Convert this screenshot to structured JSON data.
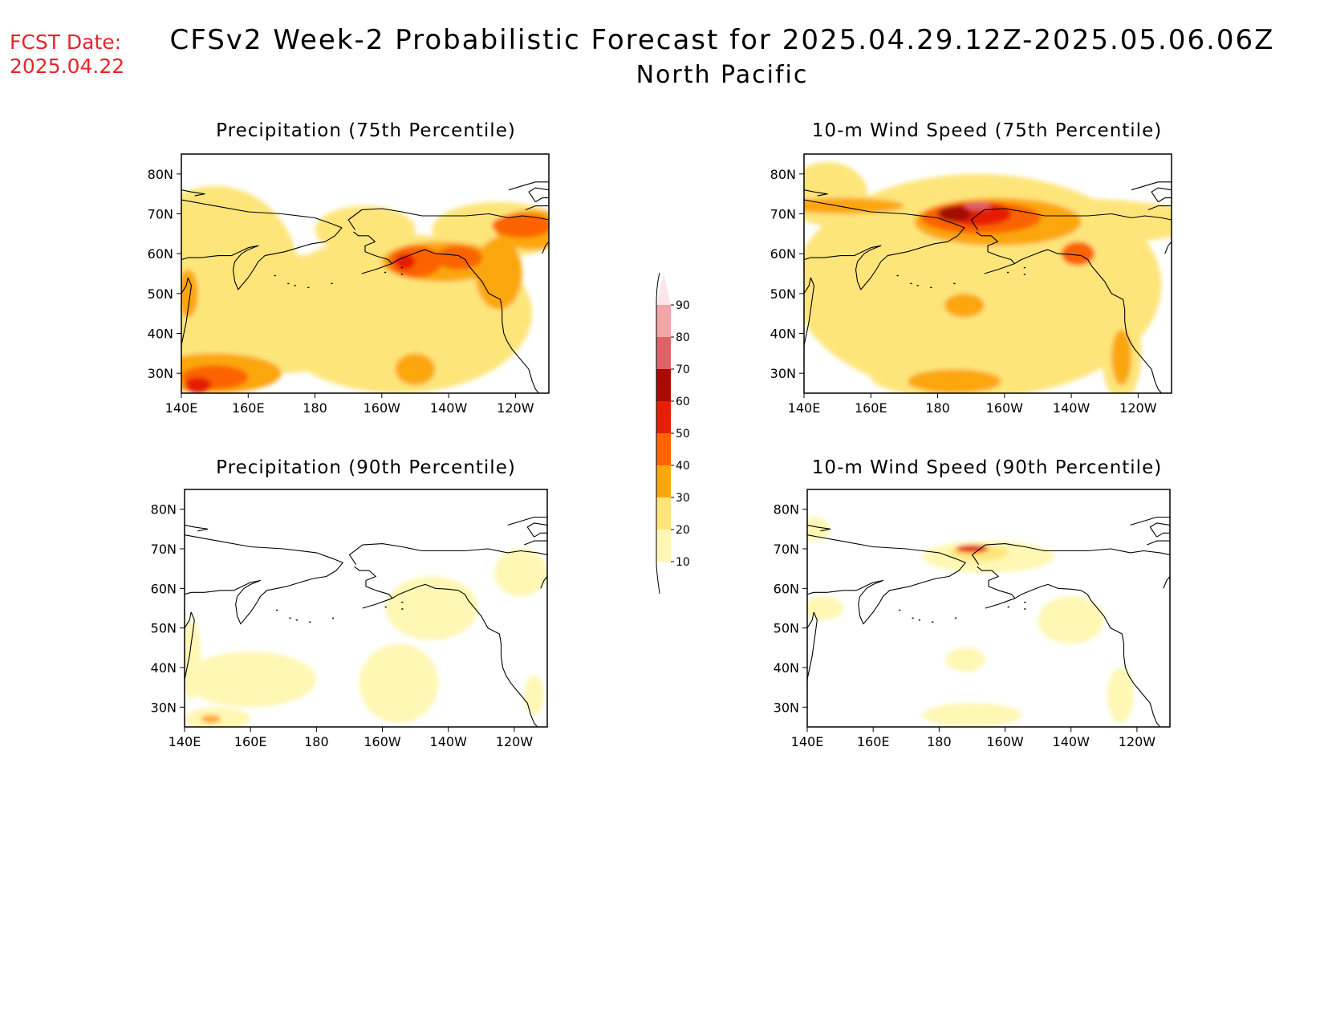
{
  "header": {
    "fcst_label": "FCST Date:",
    "fcst_date": "2025.04.22",
    "title": "CFSv2 Week-2 Probabilistic Forecast for 2025.04.29.12Z-2025.05.06.06Z",
    "subtitle": "North Pacific"
  },
  "colorbar": {
    "levels": [
      "10",
      "20",
      "30",
      "40",
      "50",
      "60",
      "70",
      "80",
      "90"
    ],
    "colors": [
      "#fff7b3",
      "#fde57a",
      "#fca60f",
      "#fb6402",
      "#e61f03",
      "#a30d02",
      "#de6268",
      "#f4a5a8",
      "#fde6e8"
    ]
  },
  "axes": {
    "x_ticks": [
      "140E",
      "160E",
      "180",
      "160W",
      "140W",
      "120W"
    ],
    "y_ticks": [
      "80N",
      "70N",
      "60N",
      "50N",
      "40N",
      "30N"
    ]
  },
  "panels": [
    {
      "id": "precip-75",
      "title": "Precipitation (75th Percentile)",
      "blobs": [
        {
          "lon": 150,
          "lat": 55,
          "rx": 25,
          "ry": 22,
          "level": 1
        },
        {
          "lon": 170,
          "lat": 45,
          "rx": 30,
          "ry": 15,
          "level": 1
        },
        {
          "lon": 205,
          "lat": 45,
          "rx": 40,
          "ry": 20,
          "level": 1
        },
        {
          "lon": 195,
          "lat": 66,
          "rx": 15,
          "ry": 6,
          "level": 1
        },
        {
          "lon": 235,
          "lat": 66,
          "rx": 20,
          "ry": 7,
          "level": 1
        },
        {
          "lon": 210,
          "lat": 36,
          "rx": 25,
          "ry": 8,
          "level": 1
        },
        {
          "lon": 150,
          "lat": 30,
          "rx": 20,
          "ry": 5,
          "level": 2
        },
        {
          "lon": 218,
          "lat": 58,
          "rx": 18,
          "ry": 5,
          "level": 2
        },
        {
          "lon": 235,
          "lat": 55,
          "rx": 7,
          "ry": 9,
          "level": 2
        },
        {
          "lon": 245,
          "lat": 66,
          "rx": 11,
          "ry": 5,
          "level": 2
        },
        {
          "lon": 142,
          "lat": 50,
          "rx": 3,
          "ry": 6,
          "level": 2
        },
        {
          "lon": 210,
          "lat": 31,
          "rx": 6,
          "ry": 4,
          "level": 2
        },
        {
          "lon": 150,
          "lat": 29,
          "rx": 10,
          "ry": 3,
          "level": 3
        },
        {
          "lon": 210,
          "lat": 58,
          "rx": 8,
          "ry": 4,
          "level": 3
        },
        {
          "lon": 223,
          "lat": 59,
          "rx": 7,
          "ry": 3,
          "level": 3
        },
        {
          "lon": 242,
          "lat": 67,
          "rx": 9,
          "ry": 3,
          "level": 3
        },
        {
          "lon": 145,
          "lat": 27,
          "rx": 4,
          "ry": 2,
          "level": 4
        },
        {
          "lon": 207,
          "lat": 58,
          "rx": 3,
          "ry": 2,
          "level": 4
        }
      ]
    },
    {
      "id": "wind-75",
      "title": "10-m Wind Speed (75th Percentile)",
      "blobs": [
        {
          "lon": 192,
          "lat": 52,
          "rx": 55,
          "ry": 28,
          "level": 1
        },
        {
          "lon": 215,
          "lat": 68,
          "rx": 45,
          "ry": 6,
          "level": 1
        },
        {
          "lon": 147,
          "lat": 75,
          "rx": 12,
          "ry": 8,
          "level": 1
        },
        {
          "lon": 185,
          "lat": 29,
          "rx": 25,
          "ry": 5,
          "level": 1
        },
        {
          "lon": 235,
          "lat": 35,
          "rx": 6,
          "ry": 12,
          "level": 1
        },
        {
          "lon": 198,
          "lat": 68,
          "rx": 25,
          "ry": 6,
          "level": 2
        },
        {
          "lon": 185,
          "lat": 28,
          "rx": 14,
          "ry": 3,
          "level": 2
        },
        {
          "lon": 235,
          "lat": 34,
          "rx": 3,
          "ry": 7,
          "level": 2
        },
        {
          "lon": 152,
          "lat": 72,
          "rx": 18,
          "ry": 2,
          "level": 2
        },
        {
          "lon": 188,
          "lat": 47,
          "rx": 6,
          "ry": 3,
          "level": 2
        },
        {
          "lon": 193,
          "lat": 69,
          "rx": 18,
          "ry": 4,
          "level": 3
        },
        {
          "lon": 222,
          "lat": 60,
          "rx": 5,
          "ry": 3,
          "level": 3
        },
        {
          "lon": 192,
          "lat": 70,
          "rx": 10,
          "ry": 3,
          "level": 4
        },
        {
          "lon": 185,
          "lat": 70,
          "rx": 5,
          "ry": 2,
          "level": 5
        },
        {
          "lon": 192,
          "lat": 72,
          "rx": 4,
          "ry": 1,
          "level": 6
        }
      ]
    },
    {
      "id": "precip-90",
      "title": "Precipitation (90th Percentile)",
      "blobs": [
        {
          "lon": 160,
          "lat": 37,
          "rx": 20,
          "ry": 7,
          "level": 0
        },
        {
          "lon": 205,
          "lat": 36,
          "rx": 12,
          "ry": 10,
          "level": 0
        },
        {
          "lon": 215,
          "lat": 55,
          "rx": 14,
          "ry": 8,
          "level": 0
        },
        {
          "lon": 242,
          "lat": 64,
          "rx": 8,
          "ry": 6,
          "level": 0
        },
        {
          "lon": 142,
          "lat": 42,
          "rx": 3,
          "ry": 10,
          "level": 0
        },
        {
          "lon": 150,
          "lat": 27,
          "rx": 10,
          "ry": 3,
          "level": 0
        },
        {
          "lon": 246,
          "lat": 33,
          "rx": 3,
          "ry": 5,
          "level": 0
        },
        {
          "lon": 148,
          "lat": 27,
          "rx": 3,
          "ry": 1,
          "level": 2
        }
      ]
    },
    {
      "id": "wind-90",
      "title": "10-m Wind Speed (90th Percentile)",
      "blobs": [
        {
          "lon": 195,
          "lat": 68,
          "rx": 20,
          "ry": 4,
          "level": 0
        },
        {
          "lon": 220,
          "lat": 52,
          "rx": 10,
          "ry": 6,
          "level": 0
        },
        {
          "lon": 235,
          "lat": 33,
          "rx": 4,
          "ry": 7,
          "level": 0
        },
        {
          "lon": 190,
          "lat": 28,
          "rx": 15,
          "ry": 3,
          "level": 0
        },
        {
          "lon": 188,
          "lat": 42,
          "rx": 6,
          "ry": 3,
          "level": 0
        },
        {
          "lon": 142,
          "lat": 75,
          "rx": 5,
          "ry": 3,
          "level": 0
        },
        {
          "lon": 145,
          "lat": 55,
          "rx": 6,
          "ry": 3,
          "level": 0
        },
        {
          "lon": 192,
          "lat": 69,
          "rx": 9,
          "ry": 2,
          "level": 1
        },
        {
          "lon": 190,
          "lat": 70,
          "rx": 5,
          "ry": 1,
          "level": 4
        }
      ]
    }
  ]
}
